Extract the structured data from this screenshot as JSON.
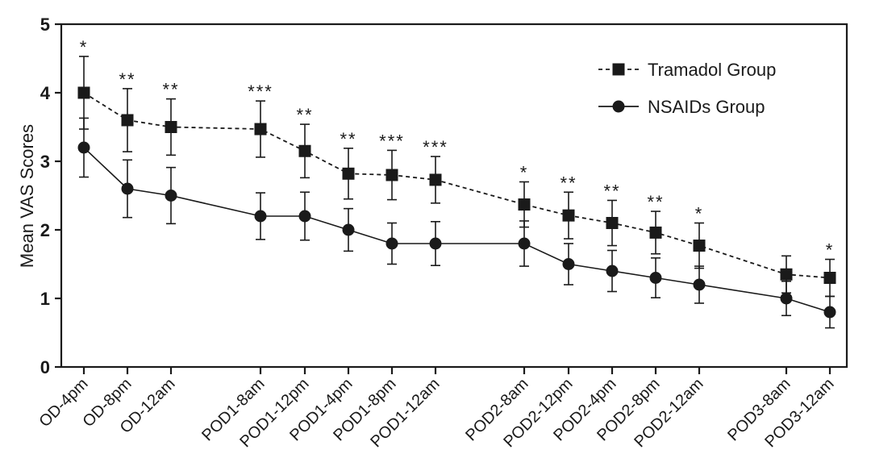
{
  "chart_data": {
    "type": "line",
    "title": "",
    "xlabel": "",
    "ylabel": "Mean VAS Scores",
    "ylim": [
      0,
      5
    ],
    "yticks": [
      0,
      1,
      2,
      3,
      4,
      5
    ],
    "grid": false,
    "legend_position": "top-right",
    "categories": [
      "OD-4pm",
      "OD-8pm",
      "OD-12am",
      "POD1-8am",
      "POD1-12pm",
      "POD1-4pm",
      "POD1-8pm",
      "POD1-12am",
      "POD2-8am",
      "POD2-12pm",
      "POD2-4pm",
      "POD2-8pm",
      "POD2-12am",
      "POD3-8am",
      "POD3-12am"
    ],
    "significance": [
      "*",
      "**",
      "**",
      "***",
      "**",
      "**",
      "***",
      "***",
      "*",
      "**",
      "**",
      "**",
      "*",
      "",
      "*"
    ],
    "series": [
      {
        "name": "Tramadol Group",
        "marker": "square",
        "line_style": "dashed",
        "color": "#1a1a1a",
        "values": [
          4.0,
          3.6,
          3.5,
          3.47,
          3.15,
          2.82,
          2.8,
          2.73,
          2.37,
          2.21,
          2.1,
          1.96,
          1.77,
          1.35,
          1.3
        ],
        "errors": [
          0.53,
          0.46,
          0.41,
          0.41,
          0.39,
          0.37,
          0.36,
          0.34,
          0.33,
          0.34,
          0.33,
          0.31,
          0.33,
          0.27,
          0.27
        ]
      },
      {
        "name": "NSAIDs Group",
        "marker": "circle",
        "line_style": "solid",
        "color": "#1a1a1a",
        "values": [
          3.2,
          2.6,
          2.5,
          2.2,
          2.2,
          2.0,
          1.8,
          1.8,
          1.8,
          1.5,
          1.4,
          1.3,
          1.2,
          1.0,
          0.8
        ],
        "errors": [
          0.43,
          0.42,
          0.41,
          0.34,
          0.35,
          0.31,
          0.3,
          0.32,
          0.33,
          0.3,
          0.3,
          0.29,
          0.27,
          0.25,
          0.23
        ]
      }
    ]
  }
}
